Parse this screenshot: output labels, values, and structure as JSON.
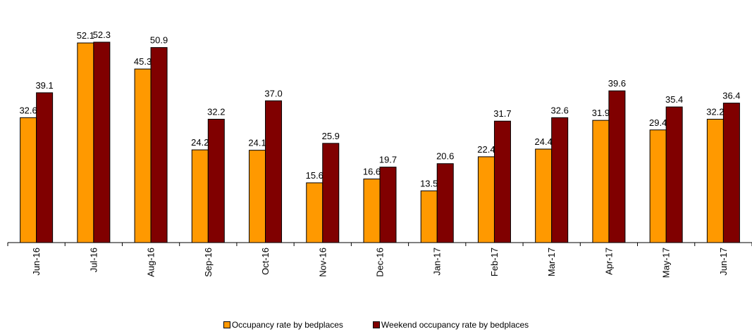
{
  "chart_data": {
    "type": "bar",
    "categories": [
      "Jun-16",
      "Jul-16",
      "Aug-16",
      "Sep-16",
      "Oct-16",
      "Nov-16",
      "Dec-16",
      "Jan-17",
      "Feb-17",
      "Mar-17",
      "Apr-17",
      "May-17",
      "Jun-17"
    ],
    "series": [
      {
        "name": "Occupancy rate by bedplaces",
        "color": "#FF9900",
        "values": [
          32.6,
          52.1,
          45.3,
          24.2,
          24.1,
          15.6,
          16.6,
          13.5,
          22.4,
          24.4,
          31.9,
          29.4,
          32.2
        ]
      },
      {
        "name": "Weekend occupancy rate by bedplaces",
        "color": "#800000",
        "values": [
          39.1,
          52.3,
          50.9,
          32.2,
          37.0,
          25.9,
          19.7,
          20.6,
          31.7,
          32.6,
          39.6,
          35.4,
          36.4
        ]
      }
    ],
    "ylim": [
      0,
      56
    ],
    "grid": false,
    "legend_position": "bottom"
  }
}
